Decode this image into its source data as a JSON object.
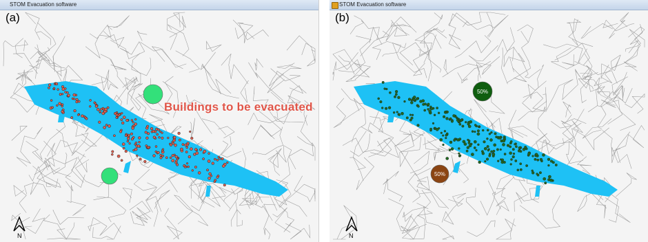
{
  "window_title": "STOM Evacuation software",
  "panels": [
    {
      "label": "(a)",
      "callout": "Buildings to be evacuated",
      "circles": [
        {
          "color": "#33e07a"
        },
        {
          "color": "#33e07a"
        }
      ]
    },
    {
      "label": "(b)",
      "circles": [
        {
          "color": "#0f5e0f",
          "text": "50%"
        },
        {
          "color": "#8b4513",
          "text": "50%"
        }
      ]
    }
  ],
  "north_arrow": "N",
  "colors": {
    "river": "#1ec1f5",
    "roads": "#9a9a9a",
    "buildings_a": "#e06050",
    "buildings_b": "#1f6b1f"
  }
}
